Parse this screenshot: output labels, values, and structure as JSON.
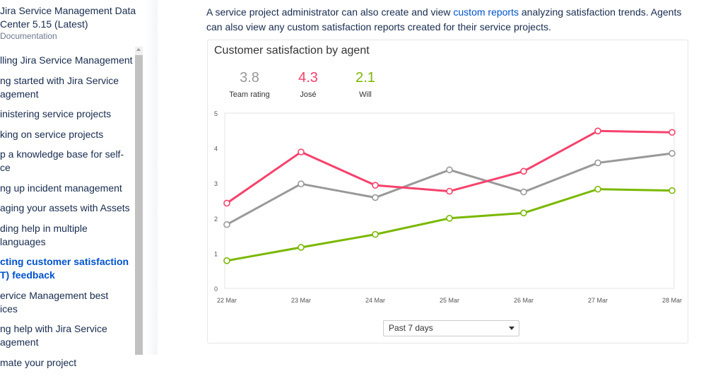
{
  "sidebar": {
    "title": "Jira Service Management Data Center 5.15 (Latest)",
    "subtitle": "Documentation",
    "items": [
      {
        "label": "lling Jira Service Management"
      },
      {
        "label": "ng started with Jira Service\nagement"
      },
      {
        "label": "inistering service projects"
      },
      {
        "label": "king on service projects"
      },
      {
        "label": "p a knowledge base for self-\nce"
      },
      {
        "label": "ng up incident management"
      },
      {
        "label": "aging your assets with Assets"
      },
      {
        "label": "ding help in multiple languages"
      },
      {
        "label": "cting customer satisfaction\nT) feedback",
        "active": true
      },
      {
        "label": "ervice Management best\nices"
      },
      {
        "label": "ng help with Jira Service\nagement"
      },
      {
        "label": "mate your project"
      }
    ]
  },
  "intro": {
    "before": "A service project administrator can also create and view ",
    "link": "custom reports",
    "after": " analyzing satisfaction trends. Agents can also view any custom satisfaction reports created for their service projects."
  },
  "card": {
    "title": "Customer satisfaction by agent",
    "stats": [
      {
        "value": "3.8",
        "label": "Team rating",
        "color": "#999999"
      },
      {
        "value": "4.3",
        "label": "José",
        "color": "#f5426c"
      },
      {
        "value": "2.1",
        "label": "Will",
        "color": "#7ab800"
      }
    ],
    "range_select": "Past 7 days"
  },
  "chart_data": {
    "type": "line",
    "title": "Customer satisfaction by agent",
    "categories": [
      "22 Mar",
      "23 Mar",
      "24 Mar",
      "25 Mar",
      "26 Mar",
      "27 Mar",
      "28 Mar"
    ],
    "ylim": [
      0,
      5
    ],
    "yticks": [
      "0",
      "1",
      "2",
      "3",
      "4",
      "5"
    ],
    "grid": false,
    "series": [
      {
        "name": "Team rating",
        "color": "#999999",
        "values": [
          1.82,
          2.98,
          2.59,
          3.38,
          2.75,
          3.58,
          3.85
        ]
      },
      {
        "name": "José",
        "color": "#f5426c",
        "values": [
          2.43,
          3.89,
          2.94,
          2.77,
          3.34,
          4.49,
          4.45
        ]
      },
      {
        "name": "Will",
        "color": "#7ab800",
        "values": [
          0.79,
          1.17,
          1.54,
          2.0,
          2.15,
          2.83,
          2.79
        ]
      }
    ]
  }
}
